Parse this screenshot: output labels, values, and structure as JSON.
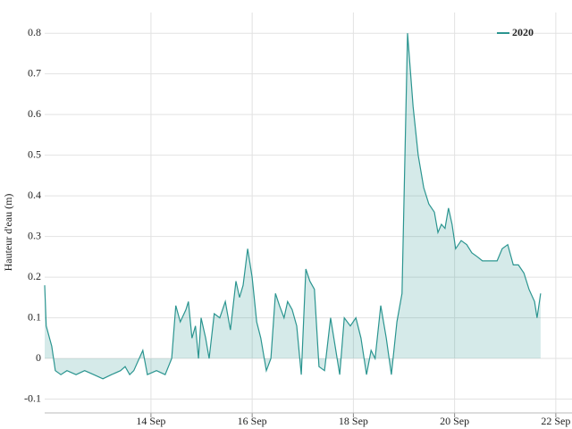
{
  "chart_data": {
    "type": "area",
    "y_label": "Hauteur d'eau (m)",
    "x": [
      11.9,
      11.93,
      12.04,
      12.11,
      12.22,
      12.34,
      12.52,
      12.69,
      12.87,
      13.05,
      13.22,
      13.4,
      13.49,
      13.58,
      13.66,
      13.84,
      13.93,
      14.11,
      14.28,
      14.41,
      14.49,
      14.58,
      14.69,
      14.74,
      14.81,
      14.88,
      14.94,
      14.99,
      15.08,
      15.15,
      15.25,
      15.36,
      15.47,
      15.57,
      15.68,
      15.75,
      15.82,
      15.91,
      16.0,
      16.09,
      16.17,
      16.28,
      16.37,
      16.46,
      16.54,
      16.63,
      16.7,
      16.79,
      16.88,
      16.97,
      17.06,
      17.14,
      17.23,
      17.32,
      17.43,
      17.55,
      17.64,
      17.73,
      17.82,
      17.94,
      18.05,
      18.15,
      18.26,
      18.35,
      18.43,
      18.54,
      18.65,
      18.75,
      18.86,
      18.96,
      19.07,
      19.18,
      19.28,
      19.39,
      19.49,
      19.6,
      19.67,
      19.74,
      19.81,
      19.88,
      19.95,
      20.02,
      20.13,
      20.24,
      20.34,
      20.45,
      20.55,
      20.7,
      20.84,
      20.94,
      21.05,
      21.16,
      21.26,
      21.37,
      21.47,
      21.58,
      21.63,
      21.7
    ],
    "series": [
      {
        "name": "2020",
        "color": "#2b9590",
        "values": [
          0.18,
          0.08,
          0.03,
          -0.03,
          -0.04,
          -0.03,
          -0.04,
          -0.03,
          -0.04,
          -0.05,
          -0.04,
          -0.03,
          -0.02,
          -0.04,
          -0.03,
          0.02,
          -0.04,
          -0.03,
          -0.04,
          0.0,
          0.13,
          0.09,
          0.12,
          0.14,
          0.05,
          0.08,
          0.0,
          0.1,
          0.05,
          0.0,
          0.11,
          0.1,
          0.14,
          0.07,
          0.19,
          0.15,
          0.18,
          0.27,
          0.2,
          0.09,
          0.05,
          -0.03,
          0.0,
          0.16,
          0.13,
          0.1,
          0.14,
          0.12,
          0.08,
          -0.04,
          0.22,
          0.19,
          0.17,
          -0.02,
          -0.03,
          0.1,
          0.03,
          -0.04,
          0.1,
          0.08,
          0.1,
          0.05,
          -0.04,
          0.02,
          0.0,
          0.13,
          0.05,
          -0.04,
          0.09,
          0.16,
          0.8,
          0.62,
          0.5,
          0.42,
          0.38,
          0.36,
          0.31,
          0.33,
          0.32,
          0.37,
          0.33,
          0.27,
          0.29,
          0.28,
          0.26,
          0.25,
          0.24,
          0.24,
          0.24,
          0.27,
          0.28,
          0.23,
          0.23,
          0.21,
          0.17,
          0.14,
          0.1,
          0.16
        ]
      }
    ],
    "xlim": [
      11.9,
      22.32
    ],
    "xticks": [
      {
        "value": 14,
        "label": "14 Sep"
      },
      {
        "value": 16,
        "label": "16 Sep"
      },
      {
        "value": 18,
        "label": "18 Sep"
      },
      {
        "value": 20,
        "label": "20 Sep"
      },
      {
        "value": 22,
        "label": "22 Sep"
      }
    ],
    "ylim": [
      -0.134,
      0.851
    ],
    "yticks": [
      -0.1,
      0,
      0.1,
      0.2,
      0.3,
      0.4,
      0.5,
      0.6,
      0.7,
      0.8
    ],
    "grid": true,
    "legend": "top-right"
  }
}
